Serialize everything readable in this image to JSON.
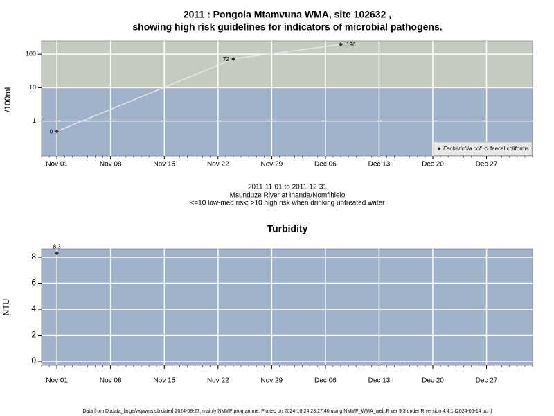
{
  "chart_data": [
    {
      "type": "line",
      "title": "2011 : Pongola Mtamvuna WMA, site 102632 ,",
      "subtitle": "showing high risk guidelines for indicators of microbial pathogens.",
      "ylabel": "/100mL",
      "notes": [
        "2011-11-01 to 2011-12-31",
        "Msunduze River at Inanda/Nomfihlelo",
        "<=10 low-med risk; >10 high risk when drinking untreated water"
      ],
      "x": [
        "2011-11-01",
        "2011-11-24",
        "2011-12-08"
      ],
      "series": [
        {
          "name": "Escherichia coli",
          "color": "#333333",
          "values": [
            0.49,
            72,
            196
          ],
          "value_labels": [
            "0",
            "72",
            "196"
          ]
        },
        {
          "name": "faecal coliforms",
          "color": "#ffffff",
          "values": [
            null,
            null,
            null
          ]
        }
      ],
      "log_scale": true,
      "threshold": 10,
      "above_color": "#c3ccbf",
      "below_color": "#a1b2cb",
      "xlim": [
        "2011-10-30",
        "2012-01-02"
      ],
      "xticks": [
        {
          "value": "2011-11-01",
          "label": "Nov 01"
        },
        {
          "value": "2011-11-08",
          "label": "Nov 08"
        },
        {
          "value": "2011-11-15",
          "label": "Nov 15"
        },
        {
          "value": "2011-11-22",
          "label": "Nov 22"
        },
        {
          "value": "2011-11-29",
          "label": "Nov 29"
        },
        {
          "value": "2011-12-06",
          "label": "Dec 06"
        },
        {
          "value": "2011-12-13",
          "label": "Dec 13"
        },
        {
          "value": "2011-12-20",
          "label": "Dec 20"
        },
        {
          "value": "2011-12-27",
          "label": "Dec 27"
        }
      ],
      "ylim": [
        0.09,
        250
      ],
      "yticks": [
        1,
        10,
        100
      ],
      "grid": true,
      "legend": "bottom-right"
    },
    {
      "type": "scatter",
      "title": "Turbidity",
      "ylabel": "NTU",
      "x": [
        "2011-11-01"
      ],
      "series": [
        {
          "name": "Turbidity",
          "color": "#333333",
          "values": [
            8.3
          ]
        }
      ],
      "background": "#a1b2cb",
      "xlim": [
        "2011-10-30",
        "2012-01-02"
      ],
      "xticks": [
        {
          "value": "2011-11-01",
          "label": "Nov 01"
        },
        {
          "value": "2011-11-08",
          "label": "Nov 08"
        },
        {
          "value": "2011-11-15",
          "label": "Nov 15"
        },
        {
          "value": "2011-11-22",
          "label": "Nov 22"
        },
        {
          "value": "2011-11-29",
          "label": "Nov 29"
        },
        {
          "value": "2011-12-06",
          "label": "Dec 06"
        },
        {
          "value": "2011-12-13",
          "label": "Dec 13"
        },
        {
          "value": "2011-12-20",
          "label": "Dec 20"
        },
        {
          "value": "2011-12-27",
          "label": "Dec 27"
        }
      ],
      "ylim": [
        -0.32,
        8.64
      ],
      "yticks": [
        0,
        2,
        4,
        6,
        8
      ],
      "grid": true
    }
  ],
  "footer": "Data from D:/data_large/wq/wms.db dated 2024-08-27, mainly NMMP programme. Plotted on 2024-10-24 23:27:40 using NMMP_WMA_web.R ver 9.3 under R version 4.4.1 (2024-06-14 ucrt)"
}
